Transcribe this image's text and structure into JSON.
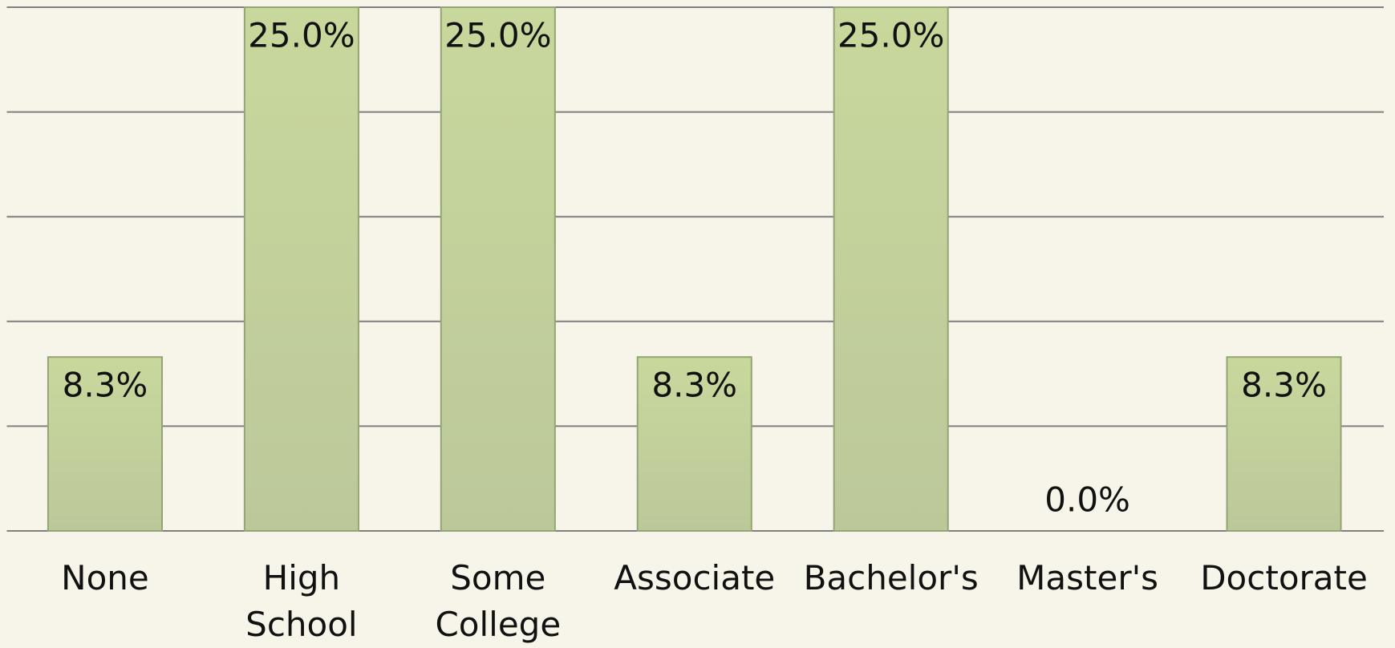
{
  "chart_data": {
    "type": "bar",
    "categories": [
      "None",
      "High School",
      "Some College",
      "Associate",
      "Bachelor's",
      "Master's",
      "Doctorate"
    ],
    "values": [
      8.3,
      25.0,
      25.0,
      8.3,
      25.0,
      0.0,
      8.3
    ],
    "value_labels": [
      "8.3%",
      "25.0%",
      "25.0%",
      "8.3%",
      "25.0%",
      "0.0%",
      "8.3%"
    ],
    "color": "#c3d49a",
    "ylim": [
      0,
      25
    ],
    "yticks": [
      0,
      5,
      10,
      15,
      20,
      25
    ],
    "grid": true
  }
}
